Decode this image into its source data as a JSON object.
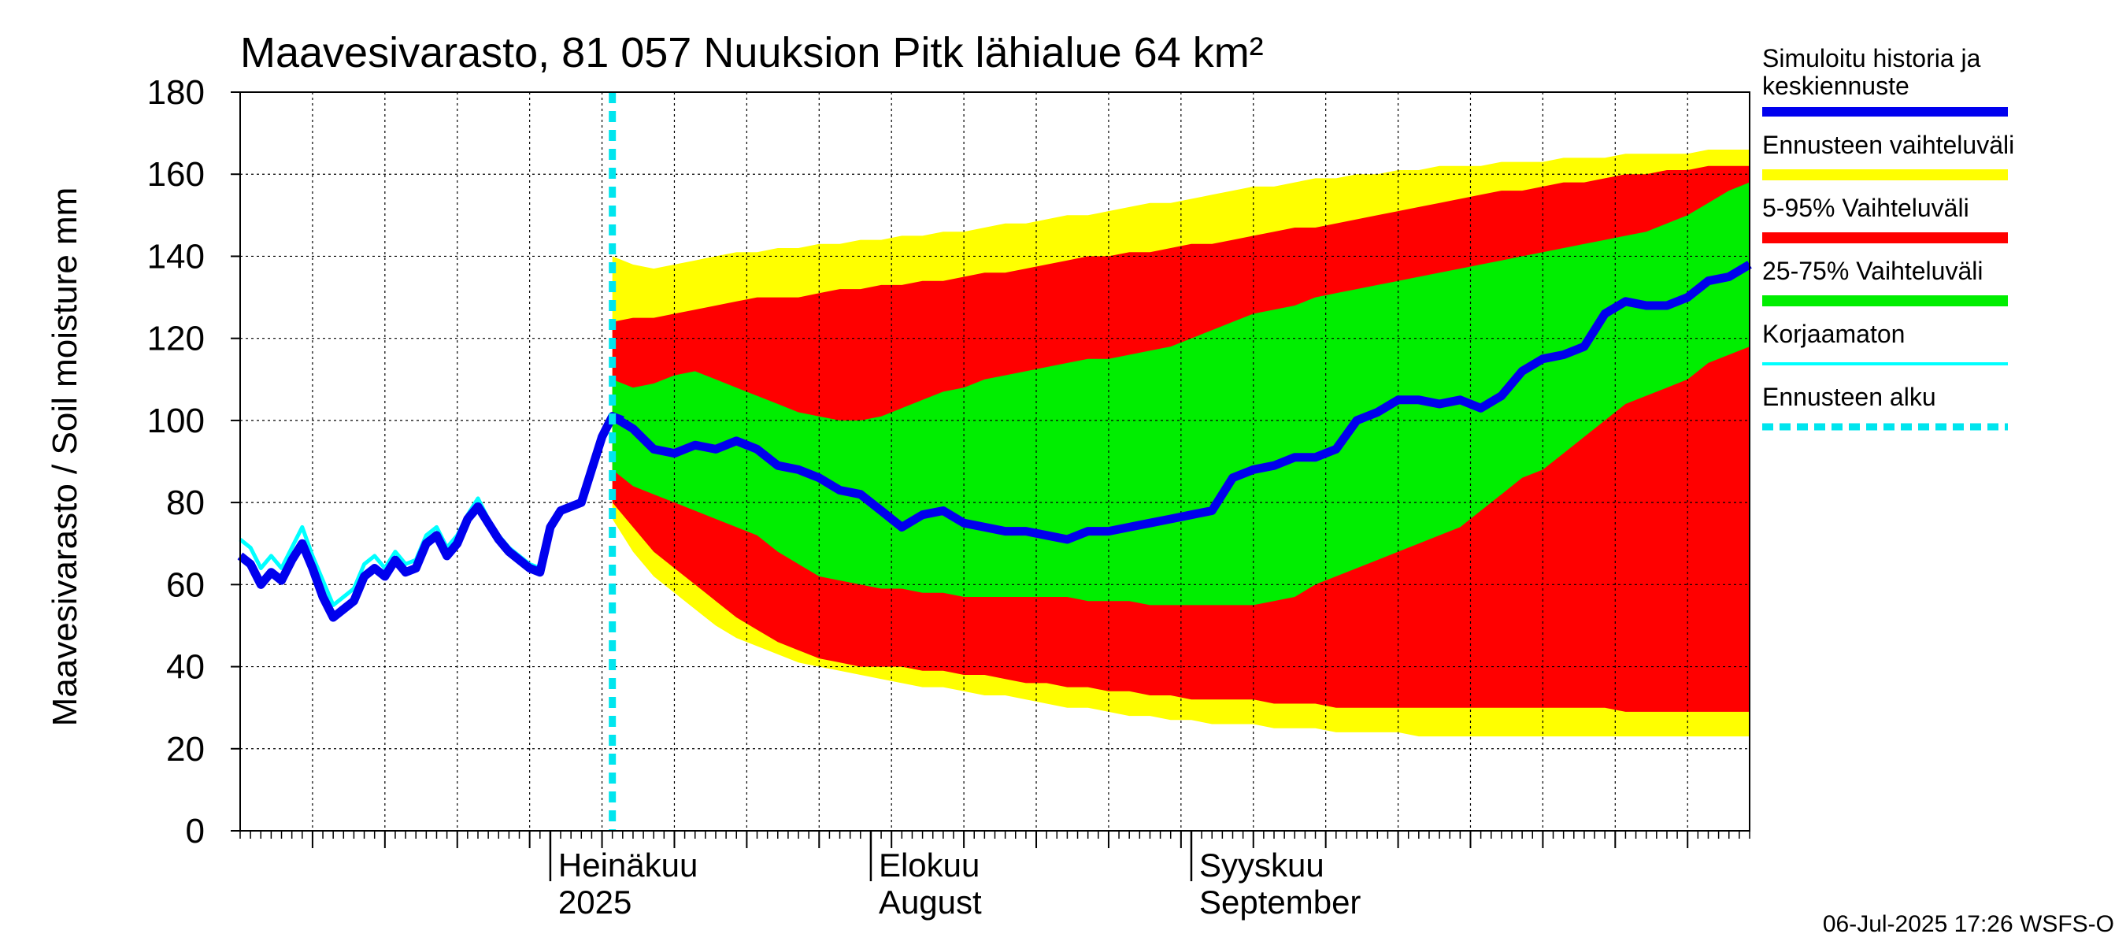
{
  "chart_data": {
    "type": "area",
    "title": "Maavesivarasto, 81 057 Nuuksion Pitk lähialue 64 km²",
    "ylabel": "Maavesivarasto / Soil moisture   mm",
    "ylim": [
      0,
      180
    ],
    "yticks": [
      0,
      20,
      40,
      60,
      80,
      100,
      120,
      140,
      160,
      180
    ],
    "xlim_days": [
      0,
      146
    ],
    "x_unit": "days since 2025-06-01",
    "forecast_start_day": 36,
    "grid": true,
    "month_labels": [
      {
        "day": 30,
        "line1": "Heinäkuu",
        "line2": "2025"
      },
      {
        "day": 61,
        "line1": "Elokuu",
        "line2": "August"
      },
      {
        "day": 92,
        "line1": "Syyskuu",
        "line2": "September"
      }
    ],
    "legend": [
      {
        "label": "Simuloitu historia ja keskiennuste",
        "color": "#0000ee",
        "style": "thick"
      },
      {
        "label": "Ennusteen vaihteluväli",
        "color": "#ffff00",
        "style": "band"
      },
      {
        "label": "5-95% Vaihteluväli",
        "color": "#ff0000",
        "style": "band"
      },
      {
        "label": "25-75% Vaihteluväli",
        "color": "#00ee00",
        "style": "band"
      },
      {
        "label": "Korjaamaton",
        "color": "#00ffff",
        "style": "thin"
      },
      {
        "label": "Ennusteen alku",
        "color": "#00e5ee",
        "style": "dashed"
      }
    ],
    "footer": "06-Jul-2025 17:26 WSFS-O",
    "history": {
      "x": [
        0,
        1,
        2,
        3,
        4,
        5,
        6,
        7,
        8,
        9,
        10,
        11,
        12,
        13,
        14,
        15,
        16,
        17,
        18,
        19,
        20,
        21,
        22,
        23,
        24,
        25,
        26,
        27,
        28,
        29,
        30,
        31,
        32,
        33,
        34,
        35,
        36,
        37
      ],
      "simulated": [
        67,
        65,
        60,
        63,
        61,
        66,
        70,
        64,
        57,
        52,
        54,
        56,
        62,
        64,
        62,
        66,
        63,
        64,
        70,
        72,
        67,
        70,
        76,
        79,
        75,
        71,
        68,
        66,
        64,
        63,
        74,
        78,
        79,
        80,
        88,
        96,
        101,
        100
      ],
      "uncorrected": [
        71,
        69,
        64,
        67,
        64,
        69,
        74,
        67,
        61,
        55,
        57,
        59,
        65,
        67,
        64,
        68,
        65,
        66,
        72,
        74,
        69,
        72,
        77,
        81,
        76,
        72,
        69,
        67,
        65,
        64,
        74,
        78,
        79,
        80,
        88,
        96,
        101,
        100
      ]
    },
    "forecast": {
      "x": [
        36,
        38,
        40,
        42,
        44,
        46,
        48,
        50,
        52,
        54,
        56,
        58,
        60,
        62,
        64,
        66,
        68,
        70,
        72,
        74,
        76,
        78,
        80,
        82,
        84,
        86,
        88,
        90,
        92,
        94,
        96,
        98,
        100,
        102,
        104,
        106,
        108,
        110,
        112,
        114,
        116,
        118,
        120,
        122,
        124,
        126,
        128,
        130,
        132,
        134,
        136,
        138,
        140,
        142,
        144,
        146
      ],
      "median": [
        101,
        98,
        93,
        92,
        94,
        93,
        95,
        93,
        89,
        88,
        86,
        83,
        82,
        78,
        74,
        77,
        78,
        75,
        74,
        73,
        73,
        72,
        71,
        73,
        73,
        74,
        75,
        76,
        77,
        78,
        86,
        88,
        89,
        91,
        91,
        93,
        100,
        102,
        105,
        105,
        104,
        105,
        103,
        106,
        112,
        115,
        116,
        118,
        126,
        129,
        128,
        128,
        130,
        134,
        135,
        138
      ],
      "p25_75_low": [
        88,
        84,
        82,
        80,
        78,
        76,
        74,
        72,
        68,
        65,
        62,
        61,
        60,
        59,
        59,
        58,
        58,
        57,
        57,
        57,
        57,
        57,
        57,
        56,
        56,
        56,
        55,
        55,
        55,
        55,
        55,
        55,
        56,
        57,
        60,
        62,
        64,
        66,
        68,
        70,
        72,
        74,
        78,
        82,
        86,
        88,
        92,
        96,
        100,
        104,
        106,
        108,
        110,
        114,
        116,
        118
      ],
      "p25_75_high": [
        110,
        108,
        109,
        111,
        112,
        110,
        108,
        106,
        104,
        102,
        101,
        100,
        100,
        101,
        103,
        105,
        107,
        108,
        110,
        111,
        112,
        113,
        114,
        115,
        115,
        116,
        117,
        118,
        120,
        122,
        124,
        126,
        127,
        128,
        130,
        131,
        132,
        133,
        134,
        135,
        136,
        137,
        138,
        139,
        140,
        141,
        142,
        143,
        144,
        145,
        146,
        148,
        150,
        153,
        156,
        158
      ],
      "p5_95_low": [
        80,
        74,
        68,
        64,
        60,
        56,
        52,
        49,
        46,
        44,
        42,
        41,
        40,
        40,
        40,
        39,
        39,
        38,
        38,
        37,
        36,
        36,
        35,
        35,
        34,
        34,
        33,
        33,
        32,
        32,
        32,
        32,
        31,
        31,
        31,
        30,
        30,
        30,
        30,
        30,
        30,
        30,
        30,
        30,
        30,
        30,
        30,
        30,
        30,
        29,
        29,
        29,
        29,
        29,
        29,
        29
      ],
      "p5_95_high": [
        124,
        125,
        125,
        126,
        127,
        128,
        129,
        130,
        130,
        130,
        131,
        132,
        132,
        133,
        133,
        134,
        134,
        135,
        136,
        136,
        137,
        138,
        139,
        140,
        140,
        141,
        141,
        142,
        143,
        143,
        144,
        145,
        146,
        147,
        147,
        148,
        149,
        150,
        151,
        152,
        153,
        154,
        155,
        156,
        156,
        157,
        158,
        158,
        159,
        160,
        160,
        161,
        161,
        162,
        162,
        162
      ],
      "range_low": [
        76,
        68,
        62,
        58,
        54,
        50,
        47,
        45,
        43,
        41,
        40,
        39,
        38,
        37,
        36,
        35,
        35,
        34,
        33,
        33,
        32,
        31,
        30,
        30,
        29,
        28,
        28,
        27,
        27,
        26,
        26,
        26,
        25,
        25,
        25,
        24,
        24,
        24,
        24,
        23,
        23,
        23,
        23,
        23,
        23,
        23,
        23,
        23,
        23,
        23,
        23,
        23,
        23,
        23,
        23,
        23
      ],
      "range_high": [
        140,
        138,
        137,
        138,
        139,
        140,
        141,
        141,
        142,
        142,
        143,
        143,
        144,
        144,
        145,
        145,
        146,
        146,
        147,
        148,
        148,
        149,
        150,
        150,
        151,
        152,
        153,
        153,
        154,
        155,
        156,
        157,
        157,
        158,
        159,
        159,
        160,
        160,
        161,
        161,
        162,
        162,
        162,
        163,
        163,
        163,
        164,
        164,
        164,
        165,
        165,
        165,
        165,
        166,
        166,
        166
      ]
    }
  }
}
